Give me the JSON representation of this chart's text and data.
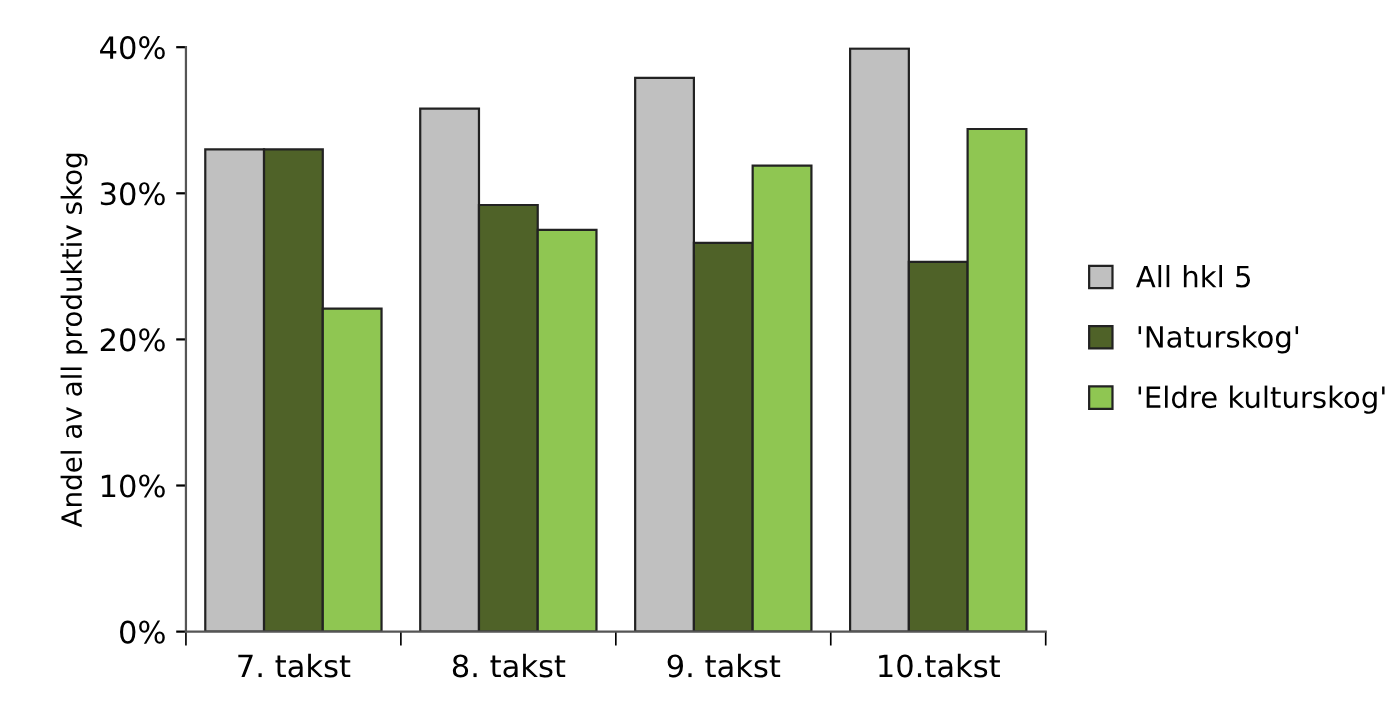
{
  "chart_data": {
    "type": "bar",
    "ylabel": "Andel av all produktiv skog",
    "categories": [
      "7. takst",
      "8. takst",
      "9. takst",
      "10.takst"
    ],
    "series": [
      {
        "name": "All hkl 5",
        "color": "#c0c0c0",
        "values": [
          33.0,
          35.8,
          37.9,
          39.9
        ]
      },
      {
        "name": "'Naturskog'",
        "color": "#4f6228",
        "values": [
          33.0,
          29.2,
          26.6,
          25.3
        ]
      },
      {
        "name": "'Eldre kulturskog'",
        "color": "#8fc652",
        "values": [
          22.1,
          27.5,
          31.9,
          34.4
        ]
      }
    ],
    "ylim": [
      0,
      40
    ],
    "yticks": [
      {
        "value": 0,
        "label": "0%"
      },
      {
        "value": 10,
        "label": "10%"
      },
      {
        "value": 20,
        "label": "20%"
      },
      {
        "value": 30,
        "label": "30%"
      },
      {
        "value": 40,
        "label": "40%"
      }
    ],
    "grid": false,
    "legend": "right"
  }
}
